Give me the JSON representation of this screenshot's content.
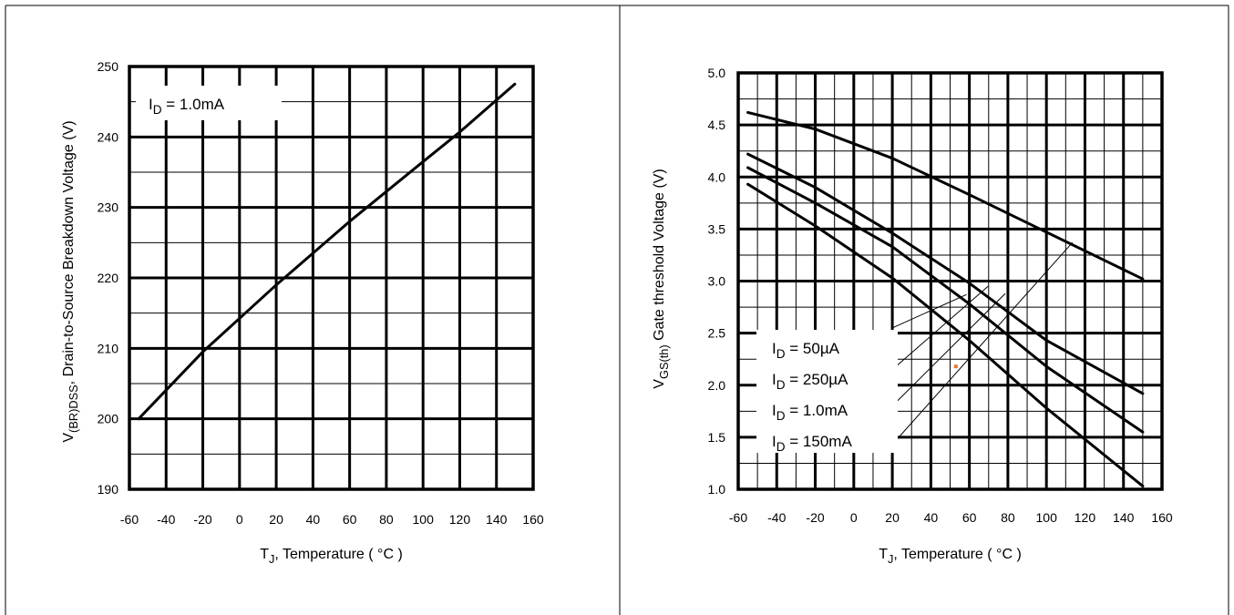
{
  "colors": {
    "ink": "#000000",
    "background": "#ffffff",
    "marker": "#e8772e"
  },
  "chart_data": [
    {
      "type": "line",
      "title": "",
      "xlabel": {
        "main": "T",
        "sub": "J",
        "rest": ", Temperature ( °C )"
      },
      "ylabel": {
        "main": "V",
        "sub": "(BR)DSS",
        "rest": ", Drain-to-Source Breakdown Voltage (V)"
      },
      "xlim": [
        -60,
        160
      ],
      "ylim": [
        190,
        250
      ],
      "xticks": [
        -60,
        -40,
        -20,
        0,
        20,
        40,
        60,
        80,
        100,
        120,
        140,
        160
      ],
      "yticks": [
        190,
        200,
        210,
        220,
        230,
        240,
        250
      ],
      "xtick_labels": [
        "-60",
        "-40",
        "-20",
        "0",
        "20",
        "40",
        "60",
        "80",
        "100",
        "120",
        "140",
        "160"
      ],
      "ytick_labels": [
        "190",
        "200",
        "210",
        "220",
        "230",
        "240",
        "250"
      ],
      "major_grid_x": [
        -40,
        -20,
        0,
        20,
        40,
        60,
        80,
        100,
        120,
        140
      ],
      "major_grid_y": [
        200,
        210,
        220,
        230,
        240
      ],
      "minor_grid_y": [
        195,
        205,
        215,
        225,
        235,
        245
      ],
      "annotation": {
        "main": "I",
        "sub": "D",
        "rest": " = 1.0mA"
      },
      "series": [
        {
          "x": [
            -55,
            -20,
            20,
            60,
            100,
            120,
            150
          ],
          "y": [
            200,
            209.5,
            219,
            228,
            236.5,
            240.7,
            247.5
          ]
        }
      ]
    },
    {
      "type": "line",
      "title": "",
      "xlabel": {
        "main": "T",
        "sub": "J",
        "rest": ", Temperature ( °C )"
      },
      "ylabel": {
        "main": "V",
        "sub": "GS(th)",
        "rest": " Gate threshold Voltage (V)"
      },
      "xlim": [
        -60,
        160
      ],
      "ylim": [
        1.0,
        5.0
      ],
      "xticks": [
        -60,
        -40,
        -20,
        0,
        20,
        40,
        60,
        80,
        100,
        120,
        140,
        160
      ],
      "yticks": [
        1.0,
        1.5,
        2.0,
        2.5,
        3.0,
        3.5,
        4.0,
        4.5,
        5.0
      ],
      "xtick_labels": [
        "-60",
        "-40",
        "-20",
        "0",
        "20",
        "40",
        "60",
        "80",
        "100",
        "120",
        "140",
        "160"
      ],
      "ytick_labels": [
        "1.0",
        "1.5",
        "2.0",
        "2.5",
        "3.0",
        "3.5",
        "4.0",
        "4.5",
        "5.0"
      ],
      "major_grid_x": [
        -40,
        -20,
        0,
        20,
        40,
        60,
        80,
        100,
        120,
        140
      ],
      "minor_grid_x": [
        -50,
        -30,
        -10,
        10,
        30,
        50,
        70,
        90,
        110,
        130,
        150
      ],
      "major_grid_y": [
        1.5,
        2.0,
        2.5,
        3.0,
        3.5,
        4.0,
        4.5
      ],
      "minor_grid_y": [
        1.25,
        1.75,
        2.25,
        2.75,
        3.25,
        3.75,
        4.25,
        4.75
      ],
      "legend_entries": [
        {
          "main": "I",
          "sub": "D",
          "rest": " = 50µA"
        },
        {
          "main": "I",
          "sub": "D",
          "rest": " = 250µA"
        },
        {
          "main": "I",
          "sub": "D",
          "rest": " = 1.0mA"
        },
        {
          "main": "I",
          "sub": "D",
          "rest": " = 150mA"
        }
      ],
      "series": [
        {
          "x": [
            -55,
            -20,
            20,
            60,
            100,
            150
          ],
          "y": [
            3.93,
            3.53,
            3.03,
            2.43,
            1.78,
            1.03
          ]
        },
        {
          "x": [
            -55,
            -20,
            20,
            60,
            100,
            150
          ],
          "y": [
            4.09,
            3.75,
            3.33,
            2.78,
            2.18,
            1.55
          ]
        },
        {
          "x": [
            -55,
            -20,
            20,
            60,
            100,
            150
          ],
          "y": [
            4.22,
            3.9,
            3.46,
            2.98,
            2.43,
            1.92
          ]
        },
        {
          "x": [
            -55,
            -20,
            20,
            60,
            100,
            150
          ],
          "y": [
            4.62,
            4.46,
            4.18,
            3.83,
            3.47,
            3.02
          ]
        }
      ],
      "leader_lines": [
        {
          "from": [
            20,
            2.55
          ],
          "to": [
            58.5,
            2.87
          ]
        },
        {
          "from": [
            20,
            2.15
          ],
          "to": [
            69.7,
            2.95
          ]
        },
        {
          "from": [
            20,
            1.8
          ],
          "to": [
            78.6,
            2.88
          ]
        },
        {
          "from": [
            20,
            1.43
          ],
          "to": [
            113.5,
            3.37
          ]
        }
      ],
      "marker": {
        "x": 53,
        "y": 2.18
      }
    }
  ]
}
